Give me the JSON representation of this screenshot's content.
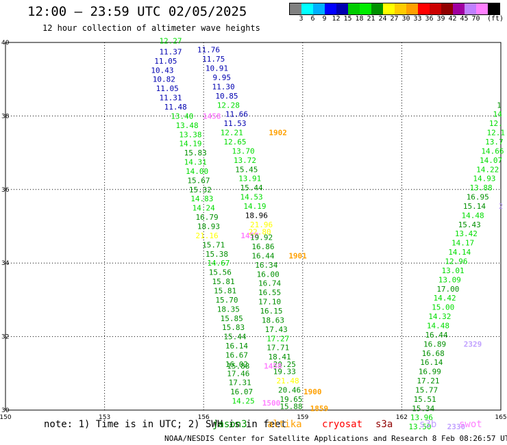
{
  "header": {
    "title": "12:00 – 23:59 UTC 02/05/2025",
    "subtitle": "12 hour collection of altimeter wave heights"
  },
  "legend": {
    "unit": "(ft)",
    "colors": [
      "#808080",
      "#00ffff",
      "#00b0ff",
      "#0000ff",
      "#0000b0",
      "#00cc00",
      "#00ee00",
      "#009000",
      "#ffff00",
      "#ffcc00",
      "#ffa000",
      "#ff0000",
      "#cc0000",
      "#900000",
      "#a000a0",
      "#c080ff",
      "#ff80ff",
      "#000000"
    ],
    "labels": [
      "3",
      "6",
      "9",
      "12",
      "15",
      "18",
      "21",
      "24",
      "27",
      "30",
      "33",
      "36",
      "39",
      "42",
      "45",
      "70"
    ]
  },
  "map": {
    "lat_range": [
      30,
      40
    ],
    "lon_range": [
      150,
      165
    ],
    "lat_ticks": [
      "30",
      "32",
      "34",
      "36",
      "38",
      "40"
    ],
    "lon_ticks": [
      "150",
      "153",
      "156",
      "159",
      "162",
      "165"
    ],
    "grid": "dotted"
  },
  "tracks": [
    {
      "lon": 155.0,
      "lat": 40.05,
      "value": "12.27",
      "color": "#00dd00"
    },
    {
      "lon": 155.0,
      "lat": 39.75,
      "value": "11.37",
      "color": "#0000b0"
    },
    {
      "lon": 156.15,
      "lat": 39.8,
      "value": "11.76",
      "color": "#0000b0"
    },
    {
      "lon": 154.85,
      "lat": 39.5,
      "value": "11.05",
      "color": "#0000b0"
    },
    {
      "lon": 156.3,
      "lat": 39.55,
      "value": "11.75",
      "color": "#0000b0"
    },
    {
      "lon": 154.75,
      "lat": 39.25,
      "value": "10.43",
      "color": "#0000b0"
    },
    {
      "lon": 156.4,
      "lat": 39.3,
      "value": "10.91",
      "color": "#0000b0"
    },
    {
      "lon": 154.8,
      "lat": 39.0,
      "value": "10.82",
      "color": "#0000b0"
    },
    {
      "lon": 156.55,
      "lat": 39.05,
      "value": "9.95",
      "color": "#0000b0"
    },
    {
      "lon": 154.9,
      "lat": 38.75,
      "value": "11.05",
      "color": "#0000b0"
    },
    {
      "lon": 156.6,
      "lat": 38.8,
      "value": "11.30",
      "color": "#0000b0"
    },
    {
      "lon": 155.0,
      "lat": 38.5,
      "value": "11.31",
      "color": "#0000b0"
    },
    {
      "lon": 156.7,
      "lat": 38.55,
      "value": "10.85",
      "color": "#0000b0"
    },
    {
      "lon": 155.15,
      "lat": 38.25,
      "value": "11.48",
      "color": "#0000b0"
    },
    {
      "lon": 156.75,
      "lat": 38.3,
      "value": "12.28",
      "color": "#00dd00"
    },
    {
      "lon": 157.0,
      "lat": 38.05,
      "value": "11.66",
      "color": "#0000b0"
    },
    {
      "lon": 155.35,
      "lat": 38.0,
      "value": "13.40",
      "color": "#00dd00"
    },
    {
      "lon": 156.25,
      "lat": 38.0,
      "value": "1458",
      "color": "#ff80ff"
    },
    {
      "lon": 156.95,
      "lat": 37.8,
      "value": "11.53",
      "color": "#0000b0"
    },
    {
      "lon": 155.5,
      "lat": 37.75,
      "value": "13.48",
      "color": "#00dd00"
    },
    {
      "lon": 156.85,
      "lat": 37.55,
      "value": "12.21",
      "color": "#00dd00"
    },
    {
      "lon": 158.25,
      "lat": 37.55,
      "value": "1902",
      "color": "#ffa000"
    },
    {
      "lon": 155.6,
      "lat": 37.5,
      "value": "13.38",
      "color": "#00dd00"
    },
    {
      "lon": 156.95,
      "lat": 37.3,
      "value": "12.65",
      "color": "#00dd00"
    },
    {
      "lon": 155.6,
      "lat": 37.25,
      "value": "14.19",
      "color": "#00dd00"
    },
    {
      "lon": 157.2,
      "lat": 37.05,
      "value": "13.70",
      "color": "#00dd00"
    },
    {
      "lon": 155.75,
      "lat": 37.0,
      "value": "15.83",
      "color": "#009000"
    },
    {
      "lon": 157.25,
      "lat": 36.8,
      "value": "13.72",
      "color": "#00dd00"
    },
    {
      "lon": 155.75,
      "lat": 36.75,
      "value": "14.31",
      "color": "#00dd00"
    },
    {
      "lon": 157.3,
      "lat": 36.55,
      "value": "15.45",
      "color": "#009000"
    },
    {
      "lon": 155.8,
      "lat": 36.5,
      "value": "14.00",
      "color": "#00dd00"
    },
    {
      "lon": 157.4,
      "lat": 36.3,
      "value": "13.91",
      "color": "#00dd00"
    },
    {
      "lon": 155.85,
      "lat": 36.25,
      "value": "15.67",
      "color": "#009000"
    },
    {
      "lon": 157.45,
      "lat": 36.05,
      "value": "15.44",
      "color": "#009000"
    },
    {
      "lon": 155.9,
      "lat": 36.0,
      "value": "15.32",
      "color": "#009000"
    },
    {
      "lon": 157.45,
      "lat": 35.8,
      "value": "14.53",
      "color": "#00dd00"
    },
    {
      "lon": 155.95,
      "lat": 35.75,
      "value": "14.83",
      "color": "#00dd00"
    },
    {
      "lon": 157.55,
      "lat": 35.55,
      "value": "14.19",
      "color": "#00dd00"
    },
    {
      "lon": 156.0,
      "lat": 35.5,
      "value": "14.24",
      "color": "#00dd00"
    },
    {
      "lon": 157.6,
      "lat": 35.3,
      "value": "18.96",
      "color": "#000000"
    },
    {
      "lon": 156.1,
      "lat": 35.25,
      "value": "16.79",
      "color": "#009000"
    },
    {
      "lon": 157.75,
      "lat": 35.05,
      "value": "21.96",
      "color": "#ffff00"
    },
    {
      "lon": 156.15,
      "lat": 35.0,
      "value": "18.93",
      "color": "#009000"
    },
    {
      "lon": 157.7,
      "lat": 34.85,
      "value": "22.80",
      "color": "#ffff00"
    },
    {
      "lon": 156.1,
      "lat": 34.75,
      "value": "21.16",
      "color": "#ffff00"
    },
    {
      "lon": 157.4,
      "lat": 34.75,
      "value": "1458",
      "color": "#ff80ff"
    },
    {
      "lon": 157.75,
      "lat": 34.7,
      "value": "19.92",
      "color": "#009000"
    },
    {
      "lon": 156.3,
      "lat": 34.5,
      "value": "15.71",
      "color": "#009000"
    },
    {
      "lon": 157.8,
      "lat": 34.45,
      "value": "16.86",
      "color": "#009000"
    },
    {
      "lon": 156.4,
      "lat": 34.25,
      "value": "15.38",
      "color": "#009000"
    },
    {
      "lon": 157.8,
      "lat": 34.2,
      "value": "16.44",
      "color": "#009000"
    },
    {
      "lon": 158.85,
      "lat": 34.2,
      "value": "1901",
      "color": "#ffa000"
    },
    {
      "lon": 156.45,
      "lat": 34.0,
      "value": "14.67",
      "color": "#00dd00"
    },
    {
      "lon": 157.9,
      "lat": 33.95,
      "value": "16.34",
      "color": "#009000"
    },
    {
      "lon": 156.5,
      "lat": 33.75,
      "value": "15.56",
      "color": "#009000"
    },
    {
      "lon": 157.95,
      "lat": 33.7,
      "value": "16.00",
      "color": "#009000"
    },
    {
      "lon": 156.6,
      "lat": 33.5,
      "value": "15.81",
      "color": "#009000"
    },
    {
      "lon": 158.0,
      "lat": 33.45,
      "value": "16.74",
      "color": "#009000"
    },
    {
      "lon": 156.65,
      "lat": 33.25,
      "value": "15.81",
      "color": "#009000"
    },
    {
      "lon": 158.0,
      "lat": 33.2,
      "value": "16.55",
      "color": "#009000"
    },
    {
      "lon": 156.7,
      "lat": 33.0,
      "value": "15.70",
      "color": "#009000"
    },
    {
      "lon": 158.0,
      "lat": 32.95,
      "value": "17.10",
      "color": "#009000"
    },
    {
      "lon": 156.75,
      "lat": 32.75,
      "value": "18.35",
      "color": "#009000"
    },
    {
      "lon": 158.05,
      "lat": 32.7,
      "value": "16.15",
      "color": "#009000"
    },
    {
      "lon": 156.85,
      "lat": 32.5,
      "value": "15.85",
      "color": "#009000"
    },
    {
      "lon": 158.1,
      "lat": 32.45,
      "value": "18.63",
      "color": "#009000"
    },
    {
      "lon": 156.9,
      "lat": 32.25,
      "value": "15.83",
      "color": "#009000"
    },
    {
      "lon": 158.2,
      "lat": 32.2,
      "value": "17.43",
      "color": "#009000"
    },
    {
      "lon": 156.95,
      "lat": 32.0,
      "value": "15.44",
      "color": "#009000"
    },
    {
      "lon": 158.25,
      "lat": 31.95,
      "value": "17.27",
      "color": "#00dd00"
    },
    {
      "lon": 157.0,
      "lat": 31.75,
      "value": "16.14",
      "color": "#009000"
    },
    {
      "lon": 158.25,
      "lat": 31.7,
      "value": "17.71",
      "color": "#009000"
    },
    {
      "lon": 157.0,
      "lat": 31.5,
      "value": "16.67",
      "color": "#009000"
    },
    {
      "lon": 158.3,
      "lat": 31.45,
      "value": "18.41",
      "color": "#009000"
    },
    {
      "lon": 157.0,
      "lat": 31.25,
      "value": "16.02",
      "color": "#009000"
    },
    {
      "lon": 158.45,
      "lat": 31.25,
      "value": "20.25",
      "color": "#009000"
    },
    {
      "lon": 158.1,
      "lat": 31.2,
      "value": "1458",
      "color": "#ff80ff"
    },
    {
      "lon": 157.05,
      "lat": 31.2,
      "value": "15.88",
      "color": "#009000"
    },
    {
      "lon": 158.45,
      "lat": 31.05,
      "value": "19.33",
      "color": "#009000"
    },
    {
      "lon": 157.05,
      "lat": 31.0,
      "value": "17.46",
      "color": "#009000"
    },
    {
      "lon": 158.55,
      "lat": 30.8,
      "value": "21.48",
      "color": "#ffff00"
    },
    {
      "lon": 157.1,
      "lat": 30.75,
      "value": "17.31",
      "color": "#009000"
    },
    {
      "lon": 158.6,
      "lat": 30.55,
      "value": "20.46",
      "color": "#009000"
    },
    {
      "lon": 159.3,
      "lat": 30.5,
      "value": "1900",
      "color": "#ffa000"
    },
    {
      "lon": 157.15,
      "lat": 30.5,
      "value": "16.07",
      "color": "#009000"
    },
    {
      "lon": 158.65,
      "lat": 30.3,
      "value": "19.65",
      "color": "#009000"
    },
    {
      "lon": 157.2,
      "lat": 30.25,
      "value": "14.25",
      "color": "#00dd00"
    },
    {
      "lon": 158.05,
      "lat": 30.2,
      "value": "1500",
      "color": "#ff80ff"
    },
    {
      "lon": 158.65,
      "lat": 30.1,
      "value": "15.88",
      "color": "#009000"
    },
    {
      "lon": 159.5,
      "lat": 30.05,
      "value": "1859",
      "color": "#ffa000"
    },
    {
      "lon": 164.95,
      "lat": 38.3,
      "value": "1",
      "color": "#009000"
    },
    {
      "lon": 164.9,
      "lat": 38.05,
      "value": "14",
      "color": "#00dd00"
    },
    {
      "lon": 164.85,
      "lat": 37.8,
      "value": "12.",
      "color": "#00dd00"
    },
    {
      "lon": 164.85,
      "lat": 37.55,
      "value": "12.1",
      "color": "#00dd00"
    },
    {
      "lon": 164.8,
      "lat": 37.3,
      "value": "13.7",
      "color": "#00dd00"
    },
    {
      "lon": 164.75,
      "lat": 37.05,
      "value": "14.66",
      "color": "#00dd00"
    },
    {
      "lon": 164.7,
      "lat": 36.8,
      "value": "14.07",
      "color": "#00dd00"
    },
    {
      "lon": 164.6,
      "lat": 36.55,
      "value": "14.22",
      "color": "#00dd00"
    },
    {
      "lon": 164.5,
      "lat": 36.3,
      "value": "14.93",
      "color": "#00dd00"
    },
    {
      "lon": 164.4,
      "lat": 36.05,
      "value": "13.88",
      "color": "#00dd00"
    },
    {
      "lon": 164.3,
      "lat": 35.8,
      "value": "16.95",
      "color": "#009000"
    },
    {
      "lon": 164.2,
      "lat": 35.55,
      "value": "15.14",
      "color": "#009000"
    },
    {
      "lon": 165.0,
      "lat": 35.55,
      "value": "2",
      "color": "#c0a0ff"
    },
    {
      "lon": 164.15,
      "lat": 35.3,
      "value": "14.48",
      "color": "#00dd00"
    },
    {
      "lon": 164.05,
      "lat": 35.05,
      "value": "15.43",
      "color": "#009000"
    },
    {
      "lon": 163.95,
      "lat": 34.8,
      "value": "13.42",
      "color": "#00dd00"
    },
    {
      "lon": 163.85,
      "lat": 34.55,
      "value": "14.17",
      "color": "#00dd00"
    },
    {
      "lon": 163.75,
      "lat": 34.3,
      "value": "14.14",
      "color": "#00dd00"
    },
    {
      "lon": 163.65,
      "lat": 34.05,
      "value": "12.96",
      "color": "#00dd00"
    },
    {
      "lon": 163.55,
      "lat": 33.8,
      "value": "13.01",
      "color": "#00dd00"
    },
    {
      "lon": 163.45,
      "lat": 33.55,
      "value": "13.09",
      "color": "#00dd00"
    },
    {
      "lon": 163.4,
      "lat": 33.3,
      "value": "17.00",
      "color": "#009000"
    },
    {
      "lon": 163.3,
      "lat": 33.05,
      "value": "14.42",
      "color": "#00dd00"
    },
    {
      "lon": 163.25,
      "lat": 32.8,
      "value": "15.00",
      "color": "#00dd00"
    },
    {
      "lon": 163.15,
      "lat": 32.55,
      "value": "14.32",
      "color": "#00dd00"
    },
    {
      "lon": 163.1,
      "lat": 32.3,
      "value": "14.48",
      "color": "#00dd00"
    },
    {
      "lon": 163.05,
      "lat": 32.05,
      "value": "16.44",
      "color": "#009000"
    },
    {
      "lon": 163.0,
      "lat": 31.8,
      "value": "16.89",
      "color": "#009000"
    },
    {
      "lon": 164.15,
      "lat": 31.8,
      "value": "2329",
      "color": "#c0a0ff"
    },
    {
      "lon": 162.95,
      "lat": 31.55,
      "value": "16.68",
      "color": "#009000"
    },
    {
      "lon": 162.9,
      "lat": 31.3,
      "value": "16.14",
      "color": "#009000"
    },
    {
      "lon": 162.85,
      "lat": 31.05,
      "value": "16.99",
      "color": "#009000"
    },
    {
      "lon": 162.8,
      "lat": 30.8,
      "value": "17.21",
      "color": "#009000"
    },
    {
      "lon": 162.75,
      "lat": 30.55,
      "value": "15.77",
      "color": "#009000"
    },
    {
      "lon": 162.7,
      "lat": 30.3,
      "value": "15.51",
      "color": "#009000"
    },
    {
      "lon": 162.65,
      "lat": 30.05,
      "value": "15.34",
      "color": "#009000"
    },
    {
      "lon": 162.6,
      "lat": 29.8,
      "value": "13.96",
      "color": "#00dd00"
    },
    {
      "lon": 162.55,
      "lat": 29.55,
      "value": "13.50",
      "color": "#00dd00"
    },
    {
      "lon": 163.65,
      "lat": 29.55,
      "value": "2330",
      "color": "#c0a0ff"
    }
  ],
  "satellites": [
    {
      "name": "jason3",
      "color": "#009000"
    },
    {
      "name": "altika",
      "color": "#ffa000"
    },
    {
      "name": "cryosat",
      "color": "#ff0000"
    },
    {
      "name": "s3a",
      "color": "#900000"
    },
    {
      "name": "s3b",
      "color": "#c0a0ff"
    },
    {
      "name": "swot",
      "color": "#ff80ff"
    }
  ],
  "note": "note:  1) Time is in UTC; 2) SWH is in feet",
  "footer": "NOAA/NESDIS Center for Satellite Applications and Research   8 Feb 08:26:57 UTC 2025"
}
